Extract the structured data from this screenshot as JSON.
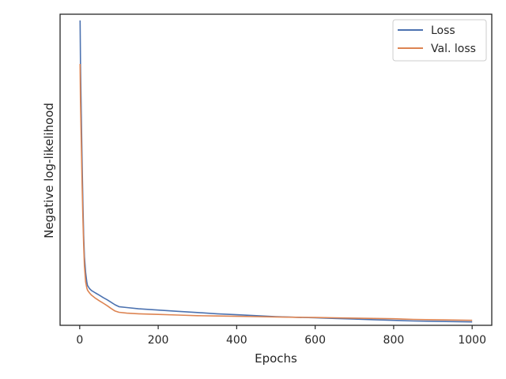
{
  "chart_data": {
    "type": "line",
    "title": "",
    "xlabel": "Epochs",
    "ylabel": "Negative log-likelihood",
    "xlim": [
      -50,
      1050
    ],
    "ylim": [
      0.0,
      1.0
    ],
    "xticks": [
      0,
      200,
      400,
      600,
      800,
      1000
    ],
    "xtick_labels": [
      "0",
      "200",
      "400",
      "600",
      "800",
      "1000"
    ],
    "yticks_visible": false,
    "grid": false,
    "legend": "top-right",
    "series": [
      {
        "name": "Loss",
        "color": "#4c72b0",
        "x": [
          1,
          2,
          4,
          6,
          8,
          10,
          12,
          15,
          18,
          20,
          25,
          30,
          40,
          50,
          60,
          70,
          80,
          90,
          100,
          120,
          150,
          200,
          250,
          300,
          350,
          400,
          450,
          500,
          550,
          600,
          650,
          700,
          750,
          800,
          850,
          900,
          950,
          1000
        ],
        "y": [
          0.98,
          0.84,
          0.68,
          0.53,
          0.4,
          0.29,
          0.22,
          0.17,
          0.139,
          0.128,
          0.118,
          0.112,
          0.104,
          0.097,
          0.089,
          0.082,
          0.074,
          0.066,
          0.06,
          0.057,
          0.053,
          0.049,
          0.045,
          0.041,
          0.037,
          0.034,
          0.031,
          0.028,
          0.026,
          0.024,
          0.022,
          0.02,
          0.018,
          0.016,
          0.014,
          0.013,
          0.012,
          0.011
        ]
      },
      {
        "name": "Val. loss",
        "color": "#dd8452",
        "x": [
          1,
          2,
          4,
          6,
          8,
          10,
          12,
          15,
          18,
          20,
          25,
          30,
          40,
          50,
          60,
          70,
          80,
          90,
          100,
          120,
          150,
          200,
          250,
          300,
          350,
          400,
          450,
          500,
          550,
          600,
          650,
          700,
          750,
          800,
          850,
          900,
          950,
          1000
        ],
        "y": [
          0.84,
          0.72,
          0.59,
          0.46,
          0.35,
          0.26,
          0.19,
          0.14,
          0.12,
          0.113,
          0.104,
          0.097,
          0.087,
          0.079,
          0.071,
          0.063,
          0.054,
          0.046,
          0.042,
          0.039,
          0.037,
          0.035,
          0.033,
          0.031,
          0.03,
          0.029,
          0.028,
          0.027,
          0.026,
          0.025,
          0.024,
          0.023,
          0.022,
          0.021,
          0.019,
          0.018,
          0.017,
          0.016
        ]
      }
    ]
  }
}
